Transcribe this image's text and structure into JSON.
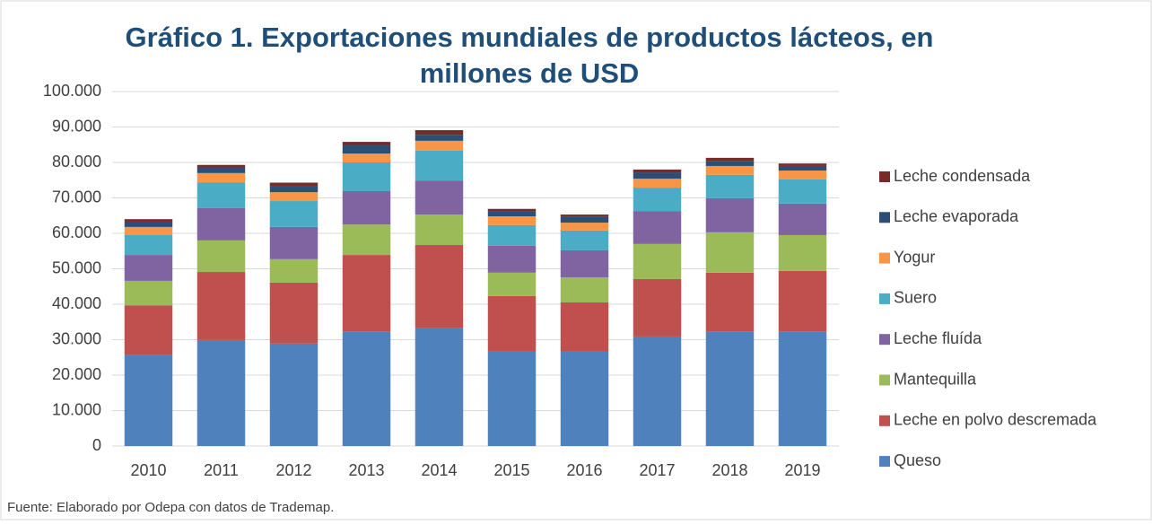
{
  "chart_data": {
    "type": "stacked_bar",
    "title": "Gráfico 1. Exportaciones mundiales de productos lácteos, en millones de USD",
    "source": "Fuente: Elaborado por Odepa con datos de Trademap.",
    "categories": [
      "2010",
      "2011",
      "2012",
      "2013",
      "2014",
      "2015",
      "2016",
      "2017",
      "2018",
      "2019"
    ],
    "series": [
      {
        "name": "Queso",
        "color": "#4f81bd",
        "values": [
          25600,
          29900,
          28900,
          32200,
          33400,
          26600,
          26600,
          30900,
          32200,
          32200
        ]
      },
      {
        "name": "Leche en polvo descremada",
        "color": "#c0504d",
        "values": [
          14100,
          19200,
          17200,
          21700,
          23300,
          15700,
          13900,
          16200,
          16700,
          17200
        ]
      },
      {
        "name": "Mantequilla",
        "color": "#9bbb59",
        "values": [
          6900,
          8900,
          6600,
          8600,
          8600,
          6600,
          7100,
          9900,
          11400,
          10100
        ]
      },
      {
        "name": "Leche fluída",
        "color": "#8064a2",
        "values": [
          7300,
          9100,
          9100,
          9400,
          9600,
          7600,
          7600,
          9300,
          9600,
          8900
        ]
      },
      {
        "name": "Suero",
        "color": "#4bacc6",
        "values": [
          5600,
          7300,
          7300,
          8100,
          8400,
          5800,
          5600,
          6600,
          6600,
          6800
        ]
      },
      {
        "name": "Yogur",
        "color": "#f79646",
        "values": [
          2300,
          2600,
          2500,
          2500,
          2800,
          2500,
          2200,
          2500,
          2500,
          2500
        ]
      },
      {
        "name": "Leche evaporada",
        "color": "#2c4d75",
        "values": [
          1500,
          1600,
          1800,
          2300,
          1700,
          1300,
          1600,
          1800,
          1300,
          1300
        ]
      },
      {
        "name": "Leche condensada",
        "color": "#772c2a",
        "values": [
          700,
          700,
          900,
          1000,
          1300,
          800,
          700,
          800,
          1000,
          700
        ]
      }
    ],
    "ylim": [
      0,
      100000
    ],
    "yticks": [
      0,
      {
        "value": 10000,
        "label": "10.000"
      },
      {
        "value": 20000,
        "label": "20.000"
      },
      {
        "value": 30000,
        "label": "30.000"
      },
      {
        "value": 40000,
        "label": "40.000"
      },
      {
        "value": 50000,
        "label": "50.000"
      },
      {
        "value": 60000,
        "label": "60.000"
      },
      {
        "value": 70000,
        "label": "70.000"
      },
      {
        "value": 80000,
        "label": "80.000"
      },
      {
        "value": 90000,
        "label": "90.000"
      },
      {
        "value": 100000,
        "label": "100.000"
      }
    ],
    "grid": true,
    "legend": "right"
  }
}
